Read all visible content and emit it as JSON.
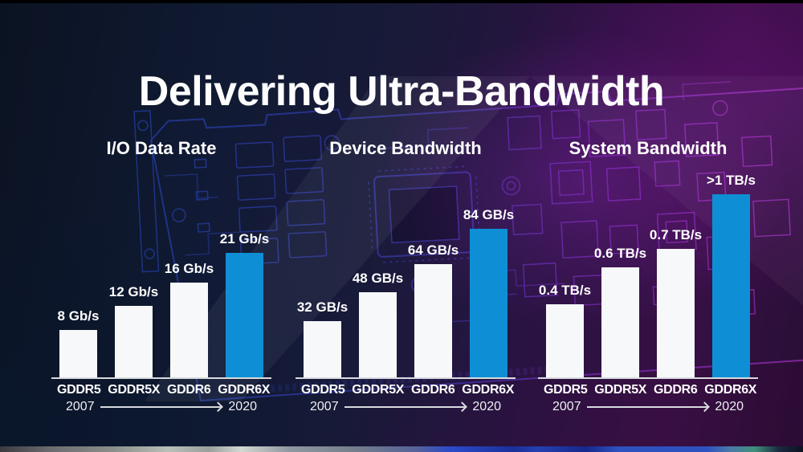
{
  "title": "Delivering Ultra-Bandwidth",
  "colors": {
    "bar_default": "#f7f8fa",
    "bar_highlight": "#0e8fd5",
    "axis": "#d7dade",
    "text": "#ffffff",
    "background_left": "#0b1322",
    "background_right": "#3a0d3f",
    "circuit_blue": "#2e5fe0",
    "circuit_purple": "#c238f0"
  },
  "chart_data": [
    {
      "type": "bar",
      "title": "I/O Data Rate",
      "categories": [
        "GDDR5",
        "GDDR5X",
        "GDDR6",
        "GDDR6X"
      ],
      "values": [
        8,
        12,
        16,
        21
      ],
      "value_labels": [
        "8 Gb/s",
        "12 Gb/s",
        "16 Gb/s",
        "21 Gb/s"
      ],
      "unit": "Gb/s",
      "ylim": [
        0,
        21
      ],
      "highlight_index": 3,
      "timeline_start": "2007",
      "timeline_end": "2020"
    },
    {
      "type": "bar",
      "title": "Device Bandwidth",
      "categories": [
        "GDDR5",
        "GDDR5X",
        "GDDR6",
        "GDDR6X"
      ],
      "values": [
        32,
        48,
        64,
        84
      ],
      "value_labels": [
        "32 GB/s",
        "48 GB/s",
        "64 GB/s",
        "84 GB/s"
      ],
      "unit": "GB/s",
      "ylim": [
        0,
        84
      ],
      "highlight_index": 3,
      "timeline_start": "2007",
      "timeline_end": "2020"
    },
    {
      "type": "bar",
      "title": "System Bandwidth",
      "categories": [
        "GDDR5",
        "GDDR5X",
        "GDDR6",
        "GDDR6X"
      ],
      "values": [
        0.4,
        0.6,
        0.7,
        1.0
      ],
      "value_labels": [
        "0.4 TB/s",
        "0.6 TB/s",
        "0.7 TB/s",
        ">1 TB/s"
      ],
      "unit": "TB/s",
      "ylim": [
        0,
        1.0
      ],
      "highlight_index": 3,
      "timeline_start": "2007",
      "timeline_end": "2020"
    }
  ]
}
